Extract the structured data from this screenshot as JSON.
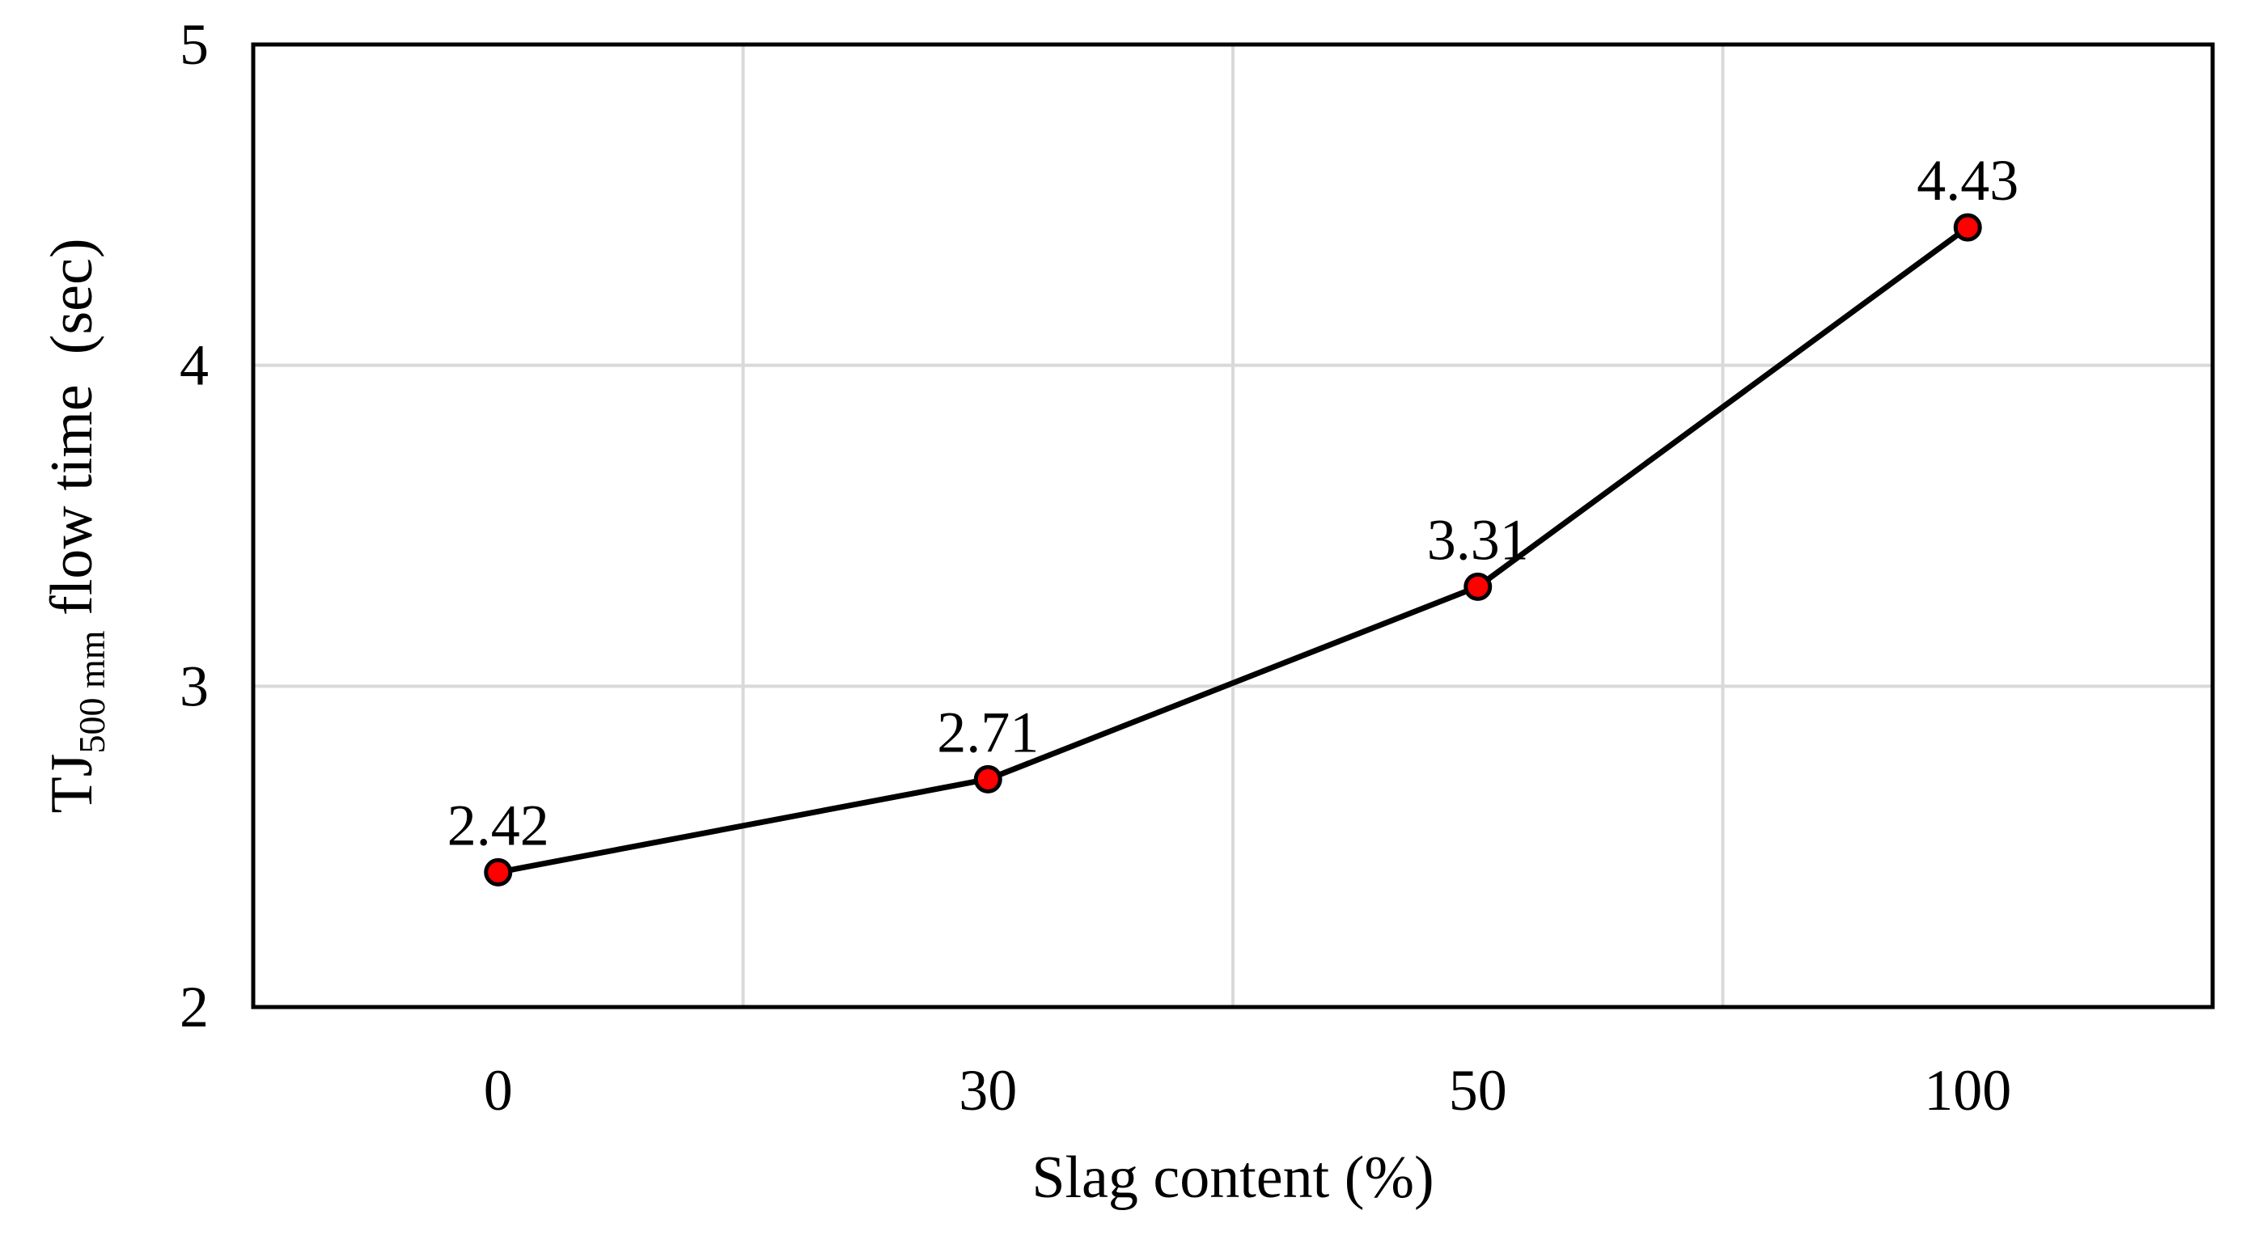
{
  "chart_data": {
    "type": "line",
    "categories": [
      "0",
      "30",
      "50",
      "100"
    ],
    "series": [
      {
        "values": [
          2.42,
          2.71,
          3.31,
          4.43
        ]
      }
    ],
    "data_labels": [
      "2.42",
      "2.71",
      "3.31",
      "4.43"
    ],
    "y_ticks": [
      "2",
      "3",
      "4",
      "5"
    ],
    "ylim": [
      2,
      5
    ],
    "xlabel": "Slag content (%)",
    "ylabel": {
      "main": "TJ",
      "subscript": "500 mm",
      "rest": " flow time  (sec)"
    },
    "grid": true,
    "legend": "none",
    "colors": {
      "line": "#000000",
      "marker_fill": "#ff0000",
      "marker_edge": "#000000",
      "grid": "#d9d9d9",
      "frame": "#000000"
    }
  }
}
